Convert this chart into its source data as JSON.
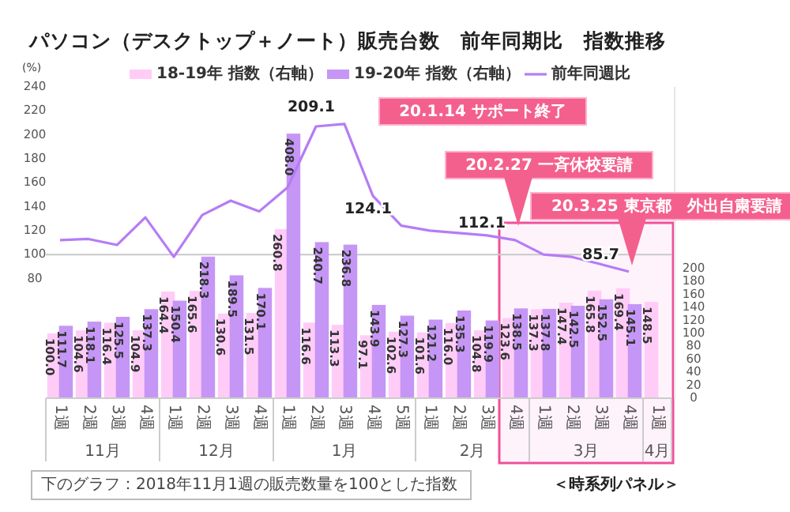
{
  "chart_data": {
    "type": "bar",
    "title": "パソコン（デスクトップ＋ノート）販売台数　前年同期比　指数推移",
    "ylabel": "(%)",
    "categories": [
      "1週",
      "2週",
      "3週",
      "4週",
      "1週",
      "2週",
      "3週",
      "4週",
      "1週",
      "2週",
      "3週",
      "4週",
      "5週",
      "1週",
      "2週",
      "3週",
      "4週",
      "1週",
      "2週",
      "3週",
      "4週",
      "1週"
    ],
    "series": [
      {
        "name": "18-19年 指数（右軸）",
        "axis": "y2",
        "color": "#ffccf7",
        "values": [
          100.0,
          104.6,
          116.4,
          104.9,
          164.4,
          165.6,
          130.6,
          131.5,
          260.8,
          116.6,
          113.3,
          97.1,
          102.6,
          101.6,
          116.0,
          104.8,
          123.6,
          137.3,
          147.4,
          165.8,
          169.4,
          148.5
        ],
        "value_labels": [
          "100.0",
          "104.6",
          "116.4",
          "104.9",
          "164.4",
          "165.6",
          "130.6",
          "131.5",
          "260.8",
          "116.6",
          "113.3",
          "97.1",
          "102.6",
          "101.6",
          "116.0",
          "104.8",
          "123.6",
          "137.3",
          "147.4",
          "165.8",
          "169.4",
          "148.5"
        ]
      },
      {
        "name": "19-20年 指数（右軸）",
        "axis": "y2",
        "color": "#c596f5",
        "values": [
          111.7,
          118.1,
          125.5,
          137.3,
          150.4,
          218.3,
          189.5,
          170.1,
          408.0,
          240.7,
          236.8,
          143.9,
          127.3,
          121.2,
          135.3,
          119.9,
          138.5,
          137.8,
          142.5,
          152.5,
          145.1,
          null
        ],
        "value_labels": [
          "111.7",
          "118.1",
          "125.5",
          "137.3",
          "150.4",
          "218.3",
          "189.5",
          "170.1",
          "408.0",
          "240.7",
          "236.8",
          "143.9",
          "127.3",
          "121.2",
          "135.3",
          "119.9",
          "138.5",
          "137.8",
          "142.5",
          "152.5",
          "145.1",
          null
        ]
      },
      {
        "name": "前年同週比",
        "type": "line",
        "color": "#b57cf5",
        "values": [
          112,
          113,
          108,
          131,
          98,
          133,
          145,
          136,
          156,
          207,
          209.1,
          149,
          124.1,
          120,
          118,
          116,
          112.1,
          100,
          98,
          92,
          85.7,
          null
        ],
        "value_labels": [
          null,
          null,
          null,
          null,
          null,
          null,
          null,
          null,
          null,
          null,
          "209.1",
          null,
          "124.1",
          null,
          null,
          null,
          "112.1",
          null,
          null,
          null,
          "85.7",
          null
        ]
      }
    ],
    "ylim": [
      -20,
      240
    ],
    "yticks": [
      80,
      100,
      120,
      140,
      160,
      180,
      200,
      220,
      240
    ],
    "y2lim": [
      0,
      480
    ],
    "y2ticks": [
      0,
      20,
      40,
      60,
      80,
      100,
      120,
      140,
      160,
      180,
      200
    ],
    "ref_lines": [
      {
        "axis": "y",
        "value": 100,
        "color": "#c8c8c8"
      }
    ],
    "legend": "top",
    "grid": false,
    "marker": "none",
    "line_style": "solid",
    "annotations": [
      "20.1.14  サポート終了",
      "20.2.27  一斉休校要請",
      "20.3.25  東京都　外出自粛要請",
      "11月",
      "12月",
      "1月",
      "2月",
      "3月",
      "4月",
      "下のグラフ：2018年11月1週の販売数量を100とした指数",
      "＜時系列パネル＞"
    ]
  }
}
